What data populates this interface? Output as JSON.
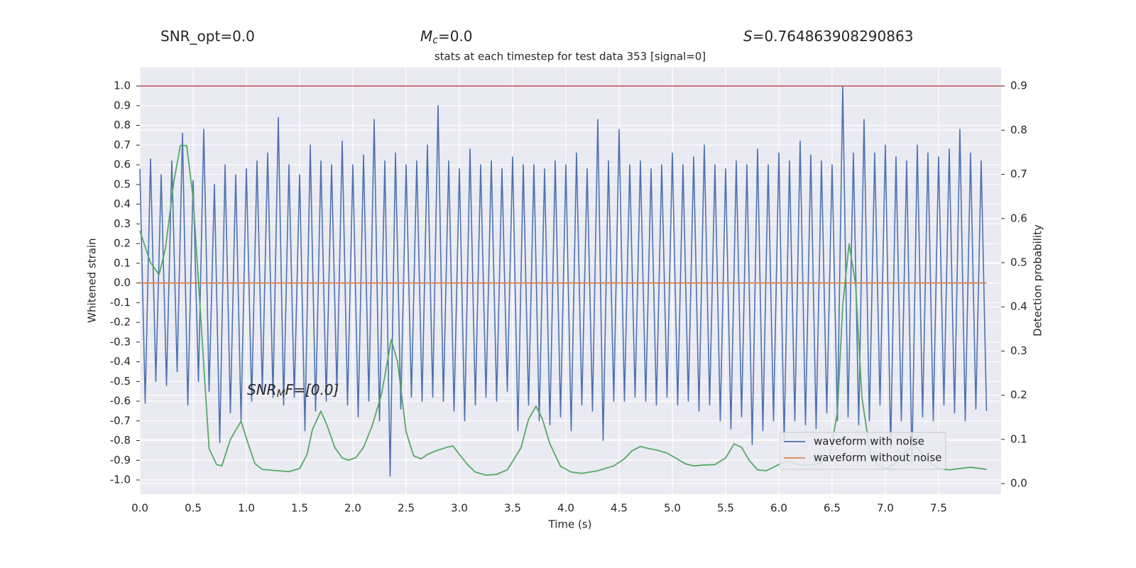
{
  "chart_data": {
    "type": "line",
    "title": "stats at each timestep for test data 353 [signal=0]",
    "annotations": [
      {
        "base": "SNR_opt=0.0"
      },
      {
        "base": "M",
        "sub": "c",
        "rest": "=0.0"
      },
      {
        "base": "S",
        "rest": "=0.764863908290863"
      },
      {
        "base": "SNR",
        "sub": "M",
        "rest": "F=[0.0]"
      }
    ],
    "xlabel": "Time (s)",
    "ylabel": "Whitened strain",
    "y2label": "Detection probability",
    "xlim": [
      0,
      8.087
    ],
    "ylim": [
      -1.072,
      1.094
    ],
    "y2lim": [
      -0.024,
      0.942
    ],
    "xticks": [
      {
        "value": 0,
        "label": "0.0"
      },
      0.5,
      {
        "value": 1,
        "label": "1.0"
      },
      1.5,
      {
        "value": 2,
        "label": "2.0"
      },
      2.5,
      {
        "value": 3,
        "label": "3.0"
      },
      3.5,
      {
        "value": 4,
        "label": "4.0"
      },
      4.5,
      {
        "value": 5,
        "label": "5.0"
      },
      5.5,
      {
        "value": 6,
        "label": "6.0"
      },
      6.5,
      {
        "value": 7,
        "label": "7.0"
      },
      7.5
    ],
    "yticks": [
      {
        "value": -1,
        "label": "-1.0"
      },
      -0.9,
      -0.8,
      -0.7,
      -0.6,
      -0.5,
      -0.4,
      -0.3,
      -0.2,
      -0.1,
      {
        "value": 0,
        "label": "0.0"
      },
      0.1,
      0.2,
      0.3,
      0.4,
      0.5,
      0.6,
      0.7,
      0.8,
      0.9,
      {
        "value": 1,
        "label": "1.0"
      }
    ],
    "y2ticks": [
      {
        "value": 0,
        "label": "0.0"
      },
      0.1,
      0.2,
      0.3,
      0.4,
      0.5,
      0.6,
      0.7,
      0.8,
      0.9
    ],
    "grid": true,
    "legend": "lower right",
    "series": [
      {
        "name": "waveform with noise",
        "color": "#4c72b0",
        "x": [
          0,
          0.05,
          0.1,
          0.15,
          0.2,
          0.25,
          0.3,
          0.35,
          0.4,
          0.45,
          0.5,
          0.55,
          0.6,
          0.65,
          0.7,
          0.75,
          0.8,
          0.85,
          0.9,
          0.95,
          1,
          1.05,
          1.1,
          1.15,
          1.2,
          1.25,
          1.3,
          1.35,
          1.4,
          1.45,
          1.5,
          1.55,
          1.6,
          1.65,
          1.7,
          1.75,
          1.8,
          1.85,
          1.9,
          1.95,
          2,
          2.05,
          2.1,
          2.15,
          2.2,
          2.25,
          2.3,
          2.35,
          2.4,
          2.45,
          2.5,
          2.55,
          2.6,
          2.65,
          2.7,
          2.75,
          2.8,
          2.85,
          2.9,
          2.95,
          3,
          3.05,
          3.1,
          3.15,
          3.2,
          3.25,
          3.3,
          3.35,
          3.4,
          3.45,
          3.5,
          3.55,
          3.6,
          3.65,
          3.7,
          3.75,
          3.8,
          3.85,
          3.9,
          3.95,
          4,
          4.05,
          4.1,
          4.15,
          4.2,
          4.25,
          4.3,
          4.35,
          4.4,
          4.45,
          4.5,
          4.55,
          4.6,
          4.65,
          4.7,
          4.75,
          4.8,
          4.85,
          4.9,
          4.95,
          5,
          5.05,
          5.1,
          5.15,
          5.2,
          5.25,
          5.3,
          5.35,
          5.4,
          5.45,
          5.5,
          5.55,
          5.6,
          5.65,
          5.7,
          5.75,
          5.8,
          5.85,
          5.9,
          5.95,
          6,
          6.05,
          6.1,
          6.15,
          6.2,
          6.25,
          6.3,
          6.35,
          6.4,
          6.45,
          6.5,
          6.55,
          6.6,
          6.65,
          6.7,
          6.75,
          6.8,
          6.85,
          6.9,
          6.95,
          7,
          7.05,
          7.1,
          7.15,
          7.2,
          7.25,
          7.3,
          7.35,
          7.4,
          7.45,
          7.5,
          7.55,
          7.6,
          7.65,
          7.7,
          7.75,
          7.8,
          7.85,
          7.9,
          7.95
        ],
        "values": [
          0.58,
          -0.61,
          0.63,
          -0.5,
          0.55,
          -0.52,
          0.62,
          -0.45,
          0.76,
          -0.62,
          0.52,
          -0.5,
          0.78,
          -0.55,
          0.5,
          -0.81,
          0.6,
          -0.66,
          0.55,
          -0.7,
          0.58,
          -0.6,
          0.62,
          -0.55,
          0.66,
          -0.58,
          0.84,
          -0.62,
          0.6,
          -0.58,
          0.55,
          -0.75,
          0.7,
          -0.65,
          0.62,
          -0.6,
          0.6,
          -0.55,
          0.72,
          -0.62,
          0.6,
          -0.68,
          0.65,
          -0.6,
          0.83,
          -0.7,
          0.62,
          -0.98,
          0.66,
          -0.64,
          0.6,
          -0.58,
          0.62,
          -0.6,
          0.7,
          -0.58,
          0.9,
          -0.6,
          0.62,
          -0.65,
          0.58,
          -0.7,
          0.68,
          -0.62,
          0.6,
          -0.58,
          0.62,
          -0.6,
          0.58,
          -0.55,
          0.64,
          -0.75,
          0.6,
          -0.62,
          0.6,
          -0.7,
          0.58,
          -0.72,
          0.62,
          -0.68,
          0.6,
          -0.75,
          0.66,
          -0.62,
          0.58,
          -0.65,
          0.83,
          -0.8,
          0.62,
          -0.6,
          0.78,
          -0.6,
          0.6,
          -0.58,
          0.62,
          -0.6,
          0.58,
          -0.62,
          0.6,
          -0.58,
          0.66,
          -0.62,
          0.6,
          -0.6,
          0.64,
          -0.65,
          0.7,
          -0.62,
          0.6,
          -0.7,
          0.58,
          -0.74,
          0.62,
          -0.68,
          0.6,
          -0.82,
          0.68,
          -0.75,
          0.6,
          -0.7,
          0.66,
          -0.8,
          0.62,
          -0.7,
          0.72,
          -0.72,
          0.65,
          -0.74,
          0.62,
          -0.66,
          0.6,
          -0.7,
          1.0,
          -0.68,
          0.66,
          -0.72,
          0.83,
          -0.7,
          0.66,
          -0.62,
          0.7,
          -0.84,
          0.64,
          -0.7,
          0.62,
          -0.92,
          0.7,
          -0.68,
          0.66,
          -0.7,
          0.64,
          -0.62,
          0.68,
          -0.66,
          0.78,
          -0.7,
          0.66,
          -0.64,
          0.62,
          -0.65
        ]
      },
      {
        "name": "waveform without noise",
        "color": "#dd8452",
        "x": [
          0,
          7.95
        ],
        "values": [
          0,
          0
        ]
      }
    ],
    "probability": {
      "color": "#55a868",
      "axis": "y2",
      "x": [
        0,
        0.1,
        0.18,
        0.24,
        0.32,
        0.38,
        0.44,
        0.5,
        0.56,
        0.65,
        0.72,
        0.77,
        0.85,
        0.95,
        1.02,
        1.08,
        1.15,
        1.3,
        1.4,
        1.5,
        1.57,
        1.62,
        1.7,
        1.76,
        1.83,
        1.9,
        1.96,
        2.03,
        2.1,
        2.18,
        2.27,
        2.36,
        2.42,
        2.5,
        2.57,
        2.64,
        2.7,
        2.78,
        2.88,
        2.94,
        3,
        3.08,
        3.15,
        3.25,
        3.35,
        3.45,
        3.5,
        3.58,
        3.65,
        3.72,
        3.78,
        3.85,
        3.95,
        4.05,
        4.15,
        4.3,
        4.45,
        4.55,
        4.62,
        4.7,
        4.78,
        4.85,
        4.95,
        5.03,
        5.12,
        5.2,
        5.3,
        5.4,
        5.5,
        5.58,
        5.65,
        5.72,
        5.8,
        5.88,
        5.95,
        6.03,
        6.1,
        6.2,
        6.3,
        6.4,
        6.48,
        6.55,
        6.6,
        6.66,
        6.72,
        6.78,
        6.86,
        6.93,
        7,
        7.07,
        7.13,
        7.2,
        7.27,
        7.33,
        7.4,
        7.5,
        7.6,
        7.7,
        7.8,
        7.95
      ],
      "values": [
        0.572,
        0.5,
        0.473,
        0.532,
        0.685,
        0.765,
        0.765,
        0.645,
        0.42,
        0.079,
        0.043,
        0.04,
        0.1,
        0.141,
        0.088,
        0.045,
        0.032,
        0.029,
        0.027,
        0.034,
        0.066,
        0.122,
        0.164,
        0.13,
        0.082,
        0.058,
        0.053,
        0.059,
        0.082,
        0.13,
        0.203,
        0.326,
        0.275,
        0.117,
        0.063,
        0.056,
        0.066,
        0.074,
        0.082,
        0.085,
        0.066,
        0.042,
        0.026,
        0.019,
        0.021,
        0.031,
        0.05,
        0.082,
        0.146,
        0.175,
        0.146,
        0.09,
        0.039,
        0.026,
        0.023,
        0.029,
        0.04,
        0.056,
        0.074,
        0.084,
        0.079,
        0.076,
        0.069,
        0.058,
        0.045,
        0.04,
        0.042,
        0.043,
        0.058,
        0.09,
        0.082,
        0.053,
        0.031,
        0.029,
        0.037,
        0.047,
        0.05,
        0.042,
        0.042,
        0.047,
        0.066,
        0.162,
        0.404,
        0.543,
        0.452,
        0.195,
        0.066,
        0.042,
        0.034,
        0.042,
        0.053,
        0.074,
        0.087,
        0.072,
        0.05,
        0.034,
        0.031,
        0.034,
        0.037,
        0.032
      ]
    },
    "threshold": {
      "value": 0.9,
      "axis": "y2",
      "color": "#c44e52"
    }
  }
}
